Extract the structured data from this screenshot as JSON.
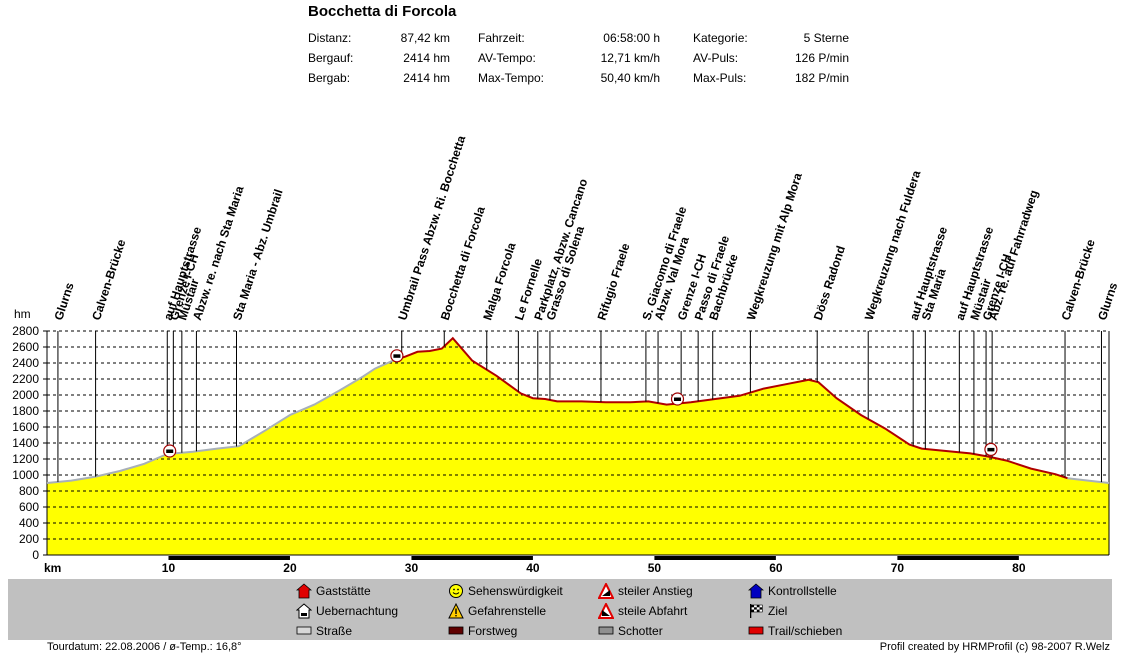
{
  "title": "Bocchetta di Forcola",
  "stats": {
    "col1": [
      {
        "label": "Distanz:",
        "value": "87,42 km"
      },
      {
        "label": "Bergauf:",
        "value": "2414 hm"
      },
      {
        "label": "Bergab:",
        "value": "2414 hm"
      }
    ],
    "col2": [
      {
        "label": "Fahrzeit:",
        "value": "06:58:00 h"
      },
      {
        "label": "AV-Tempo:",
        "value": "12,71 km/h"
      },
      {
        "label": "Max-Tempo:",
        "value": "50,40 km/h"
      }
    ],
    "col3": [
      {
        "label": "Kategorie:",
        "value": "5 Sterne"
      },
      {
        "label": "AV-Puls:",
        "value": "126 P/min"
      },
      {
        "label": "Max-Puls:",
        "value": "182 P/min"
      }
    ]
  },
  "colors": {
    "fill": "#ffff00",
    "road_line": "#a8b0b8",
    "trail_line": "#b00000",
    "legend_bg": "#c0c0c0",
    "grid": "#000000"
  },
  "chart_data": {
    "type": "area",
    "ylabel": "hm",
    "xlabel": "km",
    "ylim": [
      0,
      2800
    ],
    "xlim": [
      0,
      87.42
    ],
    "yticks": [
      0,
      200,
      400,
      600,
      800,
      1000,
      1200,
      1400,
      1600,
      1800,
      2000,
      2200,
      2400,
      2600,
      2800
    ],
    "xticks": [
      10,
      20,
      30,
      40,
      50,
      60,
      70,
      80
    ],
    "grid": true,
    "profile": {
      "x": [
        0,
        2,
        4,
        6,
        8,
        9.7,
        10.5,
        12,
        14,
        15.8,
        18,
        20,
        22,
        24,
        26,
        27,
        28.5,
        29.5,
        30.5,
        31.5,
        32.5,
        33.4,
        35,
        37,
        39,
        40,
        41,
        42,
        44,
        46,
        48,
        49.5,
        51,
        53,
        55,
        57,
        59,
        61,
        62.7,
        63.5,
        65,
        67,
        69,
        71,
        72,
        74,
        76,
        77.5,
        79,
        81,
        83,
        84,
        87.42
      ],
      "y": [
        900,
        930,
        980,
        1050,
        1140,
        1250,
        1270,
        1290,
        1330,
        1360,
        1560,
        1750,
        1880,
        2050,
        2230,
        2330,
        2430,
        2480,
        2540,
        2550,
        2580,
        2710,
        2430,
        2240,
        2020,
        1960,
        1950,
        1920,
        1920,
        1910,
        1910,
        1920,
        1880,
        1910,
        1950,
        1990,
        2080,
        2140,
        2190,
        2160,
        1960,
        1750,
        1580,
        1380,
        1330,
        1300,
        1270,
        1230,
        1180,
        1080,
        1010,
        960,
        900
      ]
    },
    "segments": [
      {
        "type": "road",
        "x": [
          0,
          9.7
        ]
      },
      {
        "type": "trail",
        "x": [
          9.7,
          10.4
        ]
      },
      {
        "type": "road",
        "x": [
          10.4,
          28.5
        ]
      },
      {
        "type": "trail",
        "x": [
          28.5,
          84
        ]
      },
      {
        "type": "road",
        "x": [
          84,
          87.42
        ]
      }
    ],
    "waypoints": [
      {
        "x": 0.9,
        "label": "Glurns"
      },
      {
        "x": 4,
        "label": "Calven-Brücke"
      },
      {
        "x": 9.9,
        "label": "auf Hauptstrasse"
      },
      {
        "x": 10.4,
        "label": "Grenze I-CH"
      },
      {
        "x": 11.1,
        "label": "Müstair"
      },
      {
        "x": 12.3,
        "label": "Abzw. re. nach Sta Maria"
      },
      {
        "x": 15.6,
        "label": "Sta Maria - Abz. Umbrail"
      },
      {
        "x": 29.2,
        "label": "Umbrail Pass  Abzw. Ri. Bocchetta"
      },
      {
        "x": 32.7,
        "label": "Bocchetta di Forcola"
      },
      {
        "x": 36.2,
        "label": "Malga Forcola"
      },
      {
        "x": 38.8,
        "label": "Le Fornelle"
      },
      {
        "x": 40.4,
        "label": "Parkplatz, Abzw. Cancano"
      },
      {
        "x": 41.4,
        "label": "Grasso di Solena"
      },
      {
        "x": 45.6,
        "label": "Rifugio Fraele"
      },
      {
        "x": 49.3,
        "label": "S. Giacomo di Fraele"
      },
      {
        "x": 50.3,
        "label": "Abzw. Val Mora"
      },
      {
        "x": 52.2,
        "label": "Grenze I-CH"
      },
      {
        "x": 53.6,
        "label": "Passo di Fraele"
      },
      {
        "x": 54.8,
        "label": "Bachbrücke"
      },
      {
        "x": 57.9,
        "label": "Wegkreuzung mit Alp Mora"
      },
      {
        "x": 63.4,
        "label": "Döss Radond"
      },
      {
        "x": 67.6,
        "label": "Wegkreuzung nach Fuldera"
      },
      {
        "x": 71.3,
        "label": "auf Hauptstrasse"
      },
      {
        "x": 72.3,
        "label": "Sta Maria"
      },
      {
        "x": 75.1,
        "label": "auf Hauptstrasse"
      },
      {
        "x": 76.3,
        "label": "Müstair"
      },
      {
        "x": 77.3,
        "label": "Grenze I-CH"
      },
      {
        "x": 77.8,
        "label": "Abz. re. auf Fahrradweg"
      },
      {
        "x": 83.8,
        "label": "Calven-Brücke"
      },
      {
        "x": 86.8,
        "label": "Glurns"
      }
    ],
    "markers": [
      {
        "x": 10.1,
        "y": 1300,
        "icon": "kontrollstelle"
      },
      {
        "x": 28.8,
        "y": 2490,
        "icon": "kontrollstelle"
      },
      {
        "x": 51.9,
        "y": 1950,
        "icon": "kontrollstelle"
      },
      {
        "x": 77.7,
        "y": 1320,
        "icon": "kontrollstelle"
      }
    ]
  },
  "legend": [
    {
      "label": "Gaststätte",
      "icon": "house-red"
    },
    {
      "label": "Uebernachtung",
      "icon": "bed-house"
    },
    {
      "label": "Straße",
      "icon": "bar-road"
    },
    {
      "label": "Sehenswürdigkeit",
      "icon": "smiley"
    },
    {
      "label": "Gefahrenstelle",
      "icon": "warning-triangle"
    },
    {
      "label": "Forstweg",
      "icon": "bar-forest"
    },
    {
      "label": "steiler Anstieg",
      "icon": "steep-up-triangle"
    },
    {
      "label": "steile Abfahrt",
      "icon": "steep-down-triangle"
    },
    {
      "label": "Schotter",
      "icon": "bar-gravel"
    },
    {
      "label": "Kontrollstelle",
      "icon": "house-blue"
    },
    {
      "label": "Ziel",
      "icon": "finish-flag"
    },
    {
      "label": "Trail/schieben",
      "icon": "bar-trail"
    }
  ],
  "footer": {
    "left": "Tourdatum: 22.08.2006  /  ø-Temp.: 16,8°",
    "right": "Profil created by HRMProfil (c) 98-2007 R.Welz"
  }
}
